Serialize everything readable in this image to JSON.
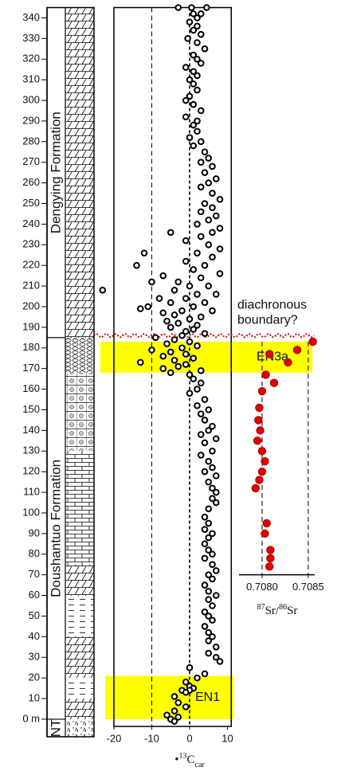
{
  "chart_data": [
    {
      "type": "scatter",
      "ylim": [
        -3.5,
        345
      ],
      "yticks": [
        {
          "value": 0,
          "label": "0 m"
        },
        10,
        20,
        30,
        40,
        50,
        60,
        70,
        80,
        90,
        100,
        110,
        120,
        130,
        140,
        150,
        160,
        170,
        180,
        190,
        200,
        210,
        220,
        230,
        240,
        250,
        260,
        270,
        280,
        290,
        300,
        310,
        320,
        330,
        340
      ],
      "xlim": [
        -20,
        11
      ],
      "xticks": [
        -20,
        -10,
        0,
        10
      ],
      "xlabel": {
        "prefix": "•",
        "sup": "13",
        "base": "C",
        "sub": "car"
      },
      "dashed_x": [
        -10,
        0
      ],
      "bands": [
        {
          "label": "EN1",
          "range": [
            0,
            21
          ]
        },
        {
          "label": "EN3a",
          "range": [
            168,
            183
          ]
        }
      ],
      "band_color": "#ffff00",
      "boundary": {
        "value": 186,
        "label": [
          "diachronous",
          "boundary?"
        ],
        "color": "#e00000"
      },
      "formations": [
        {
          "name": "Dengying Formation",
          "range": [
            185,
            345
          ]
        },
        {
          "name": "Doushantuo Formation",
          "range": [
            0,
            185
          ]
        },
        {
          "name": "NT",
          "range": [
            -8.5,
            0
          ]
        }
      ],
      "series": [
        {
          "color": "#000000",
          "x": [
            0.5,
            -3,
            4.5,
            1,
            3,
            2,
            0,
            2,
            1,
            3,
            -0.5,
            2,
            4,
            1,
            2,
            3,
            -1,
            1,
            2,
            0,
            1,
            2,
            0,
            -1,
            1,
            3,
            -1,
            2,
            1,
            2,
            0,
            3,
            1,
            4,
            5,
            3,
            6,
            4,
            7,
            5,
            3,
            6,
            8,
            4,
            6,
            3,
            7,
            5,
            2,
            8,
            -5,
            6,
            3,
            -1,
            5,
            8,
            -12,
            2,
            6,
            -1,
            4,
            -14,
            1,
            8,
            -7,
            3,
            -10,
            -3,
            0,
            5,
            -23,
            -4,
            2,
            7,
            -8,
            -1,
            4,
            -5,
            -11,
            1,
            -13,
            -2,
            6,
            -7,
            -4,
            3,
            0,
            -6,
            -3,
            2,
            -5,
            1,
            -1,
            4,
            -2,
            -9,
            -4,
            0,
            -6,
            2,
            -2,
            -10,
            -5,
            -1,
            -7,
            1,
            -4,
            -13,
            -1,
            -3,
            -7,
            3,
            -5,
            0,
            1,
            3,
            2,
            0,
            4,
            2,
            5,
            3,
            4,
            6,
            5,
            3,
            7,
            4,
            6,
            3,
            5,
            6,
            4,
            7,
            5,
            6,
            7,
            6,
            7,
            5,
            4,
            5,
            4,
            6,
            5,
            4,
            5,
            6,
            4,
            6,
            7,
            5,
            6,
            4,
            5,
            7,
            5,
            6,
            4,
            5,
            6,
            4,
            5,
            6,
            5,
            7,
            5,
            7,
            8,
            0,
            4,
            2,
            -1,
            0,
            1,
            -2,
            0,
            -1,
            -4,
            -3,
            -1,
            -4,
            -6,
            -3,
            -5,
            -4
          ],
          "values": [
            345,
            345,
            345,
            342,
            342,
            340,
            338,
            336,
            334,
            332,
            330,
            328,
            325,
            322,
            320,
            318,
            316,
            314,
            312,
            310,
            308,
            305,
            302,
            300,
            298,
            295,
            292,
            290,
            288,
            285,
            282,
            280,
            278,
            275,
            272,
            270,
            268,
            265,
            262,
            260,
            258,
            255,
            252,
            250,
            248,
            246,
            244,
            242,
            240,
            238,
            236,
            236,
            234,
            232,
            230,
            228,
            226,
            226,
            224,
            222,
            220,
            220,
            218,
            216,
            215,
            214,
            212,
            212,
            210,
            210,
            208,
            208,
            206,
            206,
            204,
            204,
            202,
            202,
            200,
            200,
            199,
            198,
            198,
            197,
            196,
            195,
            194,
            193,
            192,
            191,
            190,
            189,
            188,
            187,
            186,
            185,
            184,
            183,
            182,
            181,
            180,
            179,
            178,
            177,
            176,
            175,
            174,
            173,
            172,
            171,
            170,
            169,
            168,
            167,
            165,
            163,
            160,
            158,
            155,
            152,
            150,
            148,
            145,
            142,
            140,
            138,
            136,
            134,
            130,
            128,
            125,
            122,
            120,
            118,
            115,
            112,
            110,
            107,
            105,
            102,
            98,
            95,
            92,
            90,
            88,
            85,
            82,
            80,
            78,
            75,
            72,
            70,
            68,
            65,
            62,
            60,
            58,
            55,
            52,
            50,
            48,
            45,
            42,
            40,
            38,
            35,
            32,
            30,
            28,
            25,
            22,
            20,
            18,
            16,
            15,
            14,
            14,
            13,
            11,
            8,
            6,
            4,
            2,
            1,
            0,
            -1
          ]
        }
      ]
    },
    {
      "type": "scatter",
      "ylim": [
        70,
        183
      ],
      "xlim": [
        0.70775,
        0.70857
      ],
      "xticks": [
        {
          "value": 0.708,
          "label": "0.7080"
        },
        {
          "value": 0.7085,
          "label": "0.7085"
        }
      ],
      "xlabel": {
        "sup1": "87",
        "base1": "Sr/",
        "sup2": "86",
        "base2": "Sr"
      },
      "dashed_x": [
        0.708,
        0.7085
      ],
      "series": [
        {
          "color": "#e00000",
          "x": [
            0.70855,
            0.70838,
            0.70808,
            0.70828,
            0.70804,
            0.70813,
            0.708,
            0.70797,
            0.70796,
            0.70798,
            0.70795,
            0.708,
            0.70803,
            0.708,
            0.70797,
            0.70793,
            0.70805,
            0.70803,
            0.70809,
            0.70809,
            0.70808
          ],
          "values": [
            183,
            179,
            177,
            173,
            167,
            163,
            159,
            151,
            145,
            140,
            135,
            130,
            125,
            120,
            116,
            112,
            95,
            90,
            82,
            78,
            74
          ]
        }
      ]
    }
  ]
}
